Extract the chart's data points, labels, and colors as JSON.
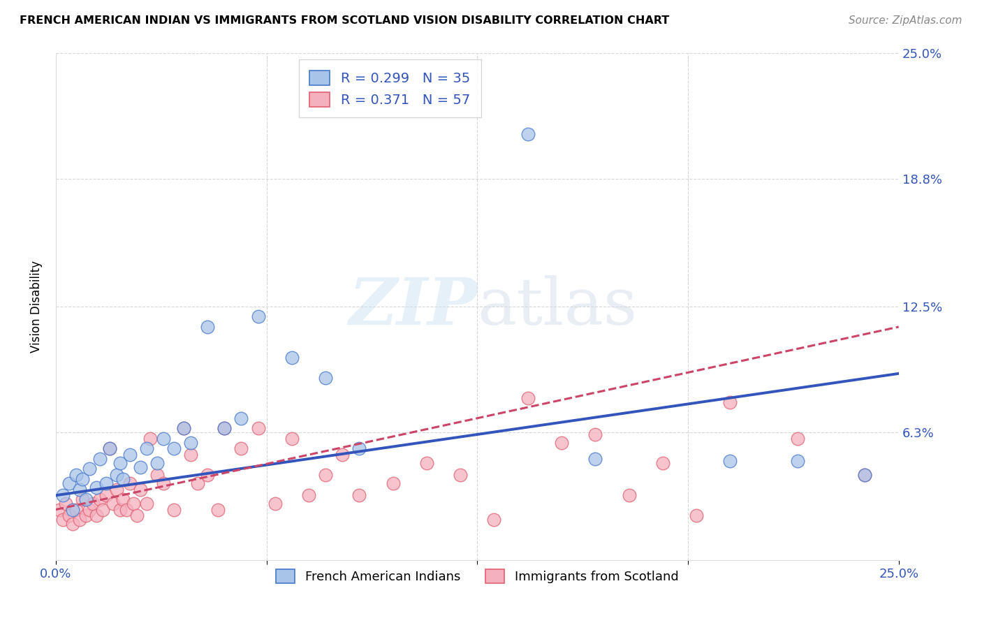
{
  "title": "FRENCH AMERICAN INDIAN VS IMMIGRANTS FROM SCOTLAND VISION DISABILITY CORRELATION CHART",
  "source": "Source: ZipAtlas.com",
  "ylabel": "Vision Disability",
  "xlim": [
    0.0,
    0.25
  ],
  "ylim": [
    0.0,
    0.25
  ],
  "ytick_vals": [
    0.0,
    0.063,
    0.125,
    0.188,
    0.25
  ],
  "ytick_labels": [
    "",
    "6.3%",
    "12.5%",
    "18.8%",
    "25.0%"
  ],
  "watermark": "ZIPatlas",
  "legend_blue_R": "R = 0.299",
  "legend_blue_N": "N = 35",
  "legend_pink_R": "R = 0.371",
  "legend_pink_N": "N = 57",
  "blue_fill": "#a8c4e8",
  "pink_fill": "#f5b0be",
  "blue_edge": "#4477cc",
  "pink_edge": "#e06070",
  "blue_line": "#3355bb",
  "pink_line": "#cc4466",
  "blue_scatter_x": [
    0.002,
    0.004,
    0.005,
    0.006,
    0.007,
    0.008,
    0.009,
    0.01,
    0.012,
    0.013,
    0.015,
    0.016,
    0.018,
    0.019,
    0.02,
    0.022,
    0.025,
    0.027,
    0.03,
    0.032,
    0.035,
    0.038,
    0.04,
    0.045,
    0.05,
    0.055,
    0.06,
    0.07,
    0.08,
    0.09,
    0.14,
    0.16,
    0.2,
    0.22,
    0.24
  ],
  "blue_scatter_y": [
    0.032,
    0.038,
    0.025,
    0.042,
    0.035,
    0.04,
    0.03,
    0.045,
    0.036,
    0.05,
    0.038,
    0.055,
    0.042,
    0.048,
    0.04,
    0.052,
    0.046,
    0.055,
    0.048,
    0.06,
    0.055,
    0.065,
    0.058,
    0.115,
    0.065,
    0.07,
    0.12,
    0.1,
    0.09,
    0.055,
    0.21,
    0.05,
    0.049,
    0.049,
    0.042
  ],
  "pink_scatter_x": [
    0.001,
    0.002,
    0.003,
    0.004,
    0.005,
    0.006,
    0.007,
    0.008,
    0.009,
    0.01,
    0.011,
    0.012,
    0.013,
    0.014,
    0.015,
    0.016,
    0.017,
    0.018,
    0.019,
    0.02,
    0.021,
    0.022,
    0.023,
    0.024,
    0.025,
    0.027,
    0.028,
    0.03,
    0.032,
    0.035,
    0.038,
    0.04,
    0.042,
    0.045,
    0.048,
    0.05,
    0.055,
    0.06,
    0.065,
    0.07,
    0.075,
    0.08,
    0.085,
    0.09,
    0.1,
    0.11,
    0.12,
    0.13,
    0.14,
    0.15,
    0.16,
    0.17,
    0.18,
    0.19,
    0.2,
    0.22,
    0.24
  ],
  "pink_scatter_y": [
    0.025,
    0.02,
    0.028,
    0.022,
    0.018,
    0.025,
    0.02,
    0.03,
    0.022,
    0.025,
    0.028,
    0.022,
    0.03,
    0.025,
    0.032,
    0.055,
    0.028,
    0.035,
    0.025,
    0.03,
    0.025,
    0.038,
    0.028,
    0.022,
    0.035,
    0.028,
    0.06,
    0.042,
    0.038,
    0.025,
    0.065,
    0.052,
    0.038,
    0.042,
    0.025,
    0.065,
    0.055,
    0.065,
    0.028,
    0.06,
    0.032,
    0.042,
    0.052,
    0.032,
    0.038,
    0.048,
    0.042,
    0.02,
    0.08,
    0.058,
    0.062,
    0.032,
    0.048,
    0.022,
    0.078,
    0.06,
    0.042
  ],
  "background_color": "#ffffff",
  "grid_color": "#cccccc"
}
